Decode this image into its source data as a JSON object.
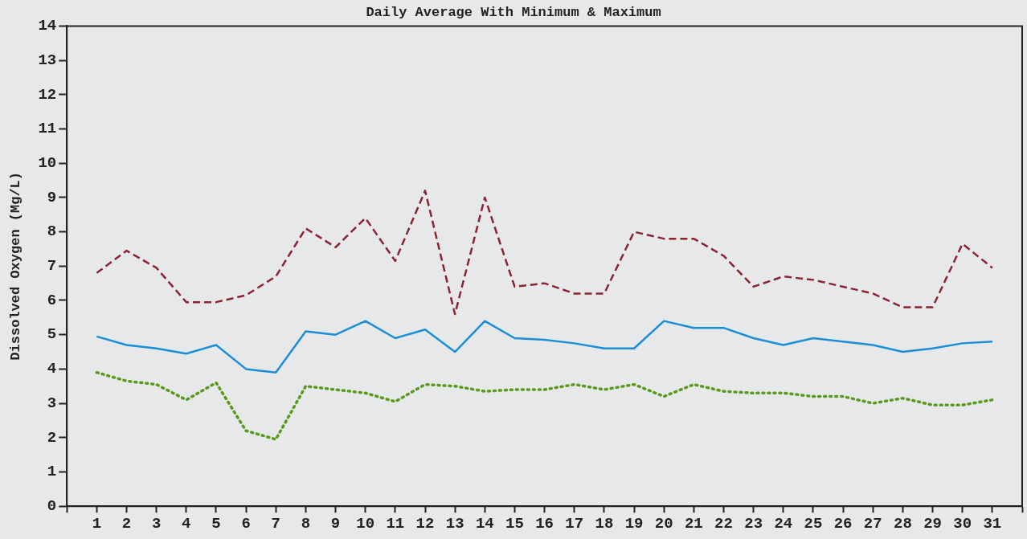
{
  "chart_data": {
    "type": "line",
    "title": "Daily Average With Minimum & Maximum",
    "ylabel": "Dissolved Oxygen (Mg/L)",
    "x": [
      1,
      2,
      3,
      4,
      5,
      6,
      7,
      8,
      9,
      10,
      11,
      12,
      13,
      14,
      15,
      16,
      17,
      18,
      19,
      20,
      21,
      22,
      23,
      24,
      25,
      26,
      27,
      28,
      29,
      30,
      31
    ],
    "series": [
      {
        "color": "#8b2332",
        "line_style": "dashed",
        "values": [
          6.8,
          7.45,
          6.95,
          5.95,
          5.95,
          6.15,
          6.7,
          8.1,
          7.55,
          8.4,
          7.15,
          9.2,
          5.6,
          9.0,
          6.4,
          6.5,
          6.2,
          6.2,
          8.0,
          7.8,
          7.8,
          7.3,
          6.4,
          6.7,
          6.6,
          6.4,
          6.2,
          5.8,
          5.8,
          7.65,
          6.95
        ]
      },
      {
        "color": "#1a8fd6",
        "line_style": "solid",
        "values": [
          4.95,
          4.7,
          4.6,
          4.45,
          4.7,
          4.0,
          3.9,
          5.1,
          5.0,
          5.4,
          4.9,
          5.15,
          4.5,
          5.4,
          4.9,
          4.85,
          4.75,
          4.6,
          4.6,
          5.4,
          5.2,
          5.2,
          4.9,
          4.7,
          4.9,
          4.8,
          4.7,
          4.5,
          4.6,
          4.75,
          4.8
        ]
      },
      {
        "color": "#5a9a1a",
        "line_style": "dotted",
        "values": [
          3.9,
          3.65,
          3.55,
          3.1,
          3.6,
          2.2,
          1.95,
          3.5,
          3.4,
          3.3,
          3.05,
          3.55,
          3.5,
          3.35,
          3.4,
          3.4,
          3.55,
          3.4,
          3.55,
          3.2,
          3.55,
          3.35,
          3.3,
          3.3,
          3.2,
          3.2,
          3.0,
          3.15,
          2.95,
          2.95,
          3.1
        ]
      }
    ],
    "xlim": [
      0,
      32
    ],
    "xticks": [
      {
        "value": 0,
        "label": null
      },
      1,
      2,
      3,
      4,
      5,
      6,
      7,
      8,
      9,
      10,
      11,
      12,
      13,
      14,
      15,
      16,
      17,
      18,
      19,
      20,
      21,
      22,
      23,
      24,
      25,
      26,
      27,
      28,
      29,
      30,
      31,
      {
        "value": 32,
        "label": null
      }
    ],
    "ylim": [
      0,
      14
    ],
    "yticks": [
      0,
      1,
      2,
      3,
      4,
      5,
      6,
      7,
      8,
      9,
      10,
      11,
      12,
      13,
      14
    ],
    "grid": false,
    "legend": false,
    "marker": "none"
  }
}
